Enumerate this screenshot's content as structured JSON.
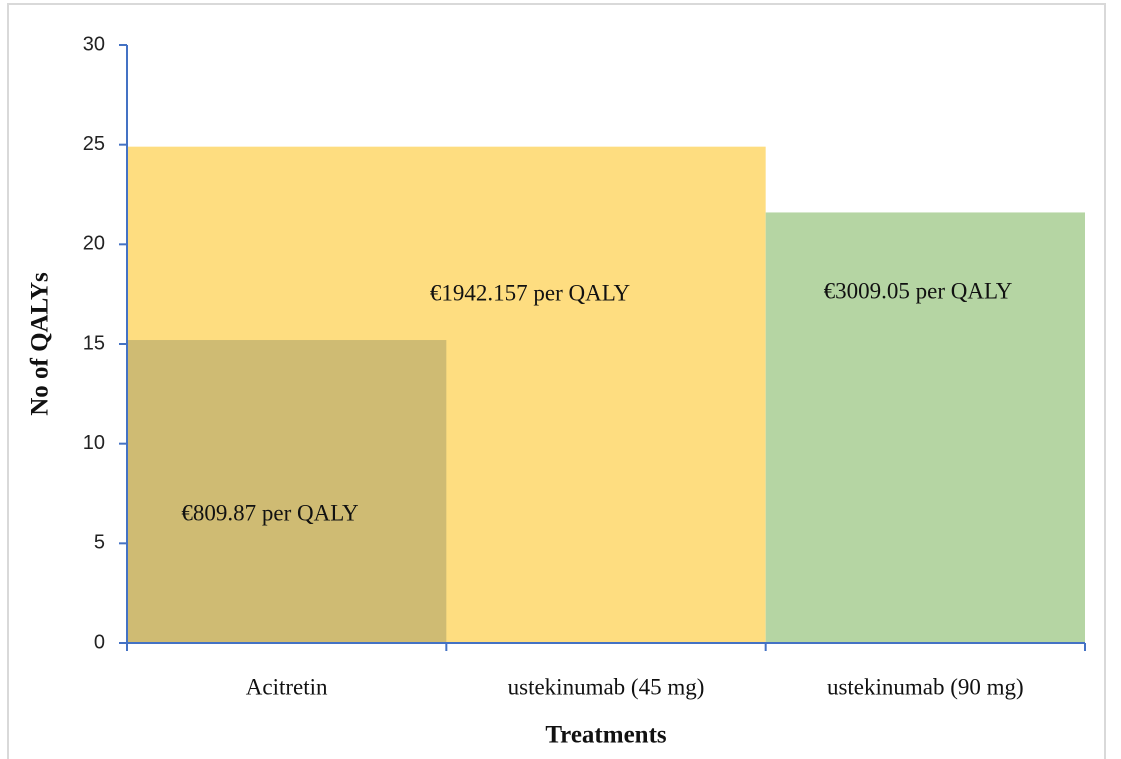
{
  "chart_data": {
    "type": "bar",
    "x_label": "Treatments",
    "y_label": "No of QALYs",
    "categories": [
      "Acitretin",
      "ustekinumab (45 mg)",
      "ustekinumab (90 mg)"
    ],
    "values": [
      15.2,
      24.9,
      21.6
    ],
    "colors": [
      "#cfbb73",
      "#fedd80",
      "#b5d5a3"
    ],
    "bar_labels": [
      "€809.87 per QALY",
      "€1942.157 per QALY",
      "€3009.05 per QALY"
    ],
    "ylim": [
      0,
      30
    ],
    "yticks": [
      0,
      5,
      10,
      15,
      20,
      25,
      30
    ],
    "grid": false
  }
}
